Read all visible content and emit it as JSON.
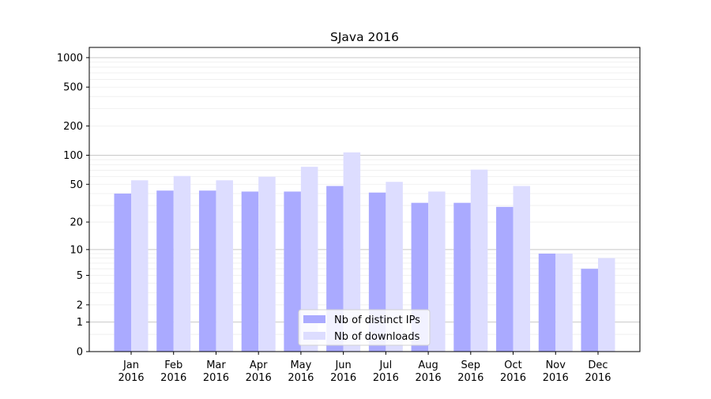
{
  "chart_data": {
    "type": "bar",
    "title": "SJava 2016",
    "xlabel": "",
    "ylabel": "",
    "yscale": "log(1+y)",
    "ylim": [
      0,
      1270
    ],
    "yticks": [
      0,
      1,
      2,
      5,
      10,
      20,
      50,
      100,
      200,
      500,
      1000
    ],
    "grid": true,
    "legend_position": "bottom-center",
    "categories": [
      "Jan\n2016",
      "Feb\n2016",
      "Mar\n2016",
      "Apr\n2016",
      "May\n2016",
      "Jun\n2016",
      "Jul\n2016",
      "Aug\n2016",
      "Sep\n2016",
      "Oct\n2016",
      "Nov\n2016",
      "Dec\n2016"
    ],
    "series": [
      {
        "name": "Nb of distinct IPs",
        "color": "#aaaaff",
        "values": [
          40,
          43,
          43,
          42,
          42,
          48,
          41,
          32,
          32,
          29,
          9,
          6
        ]
      },
      {
        "name": "Nb of downloads",
        "color": "#ddddff",
        "values": [
          55,
          61,
          55,
          60,
          76,
          107,
          53,
          42,
          71,
          48,
          9,
          8
        ]
      }
    ]
  }
}
